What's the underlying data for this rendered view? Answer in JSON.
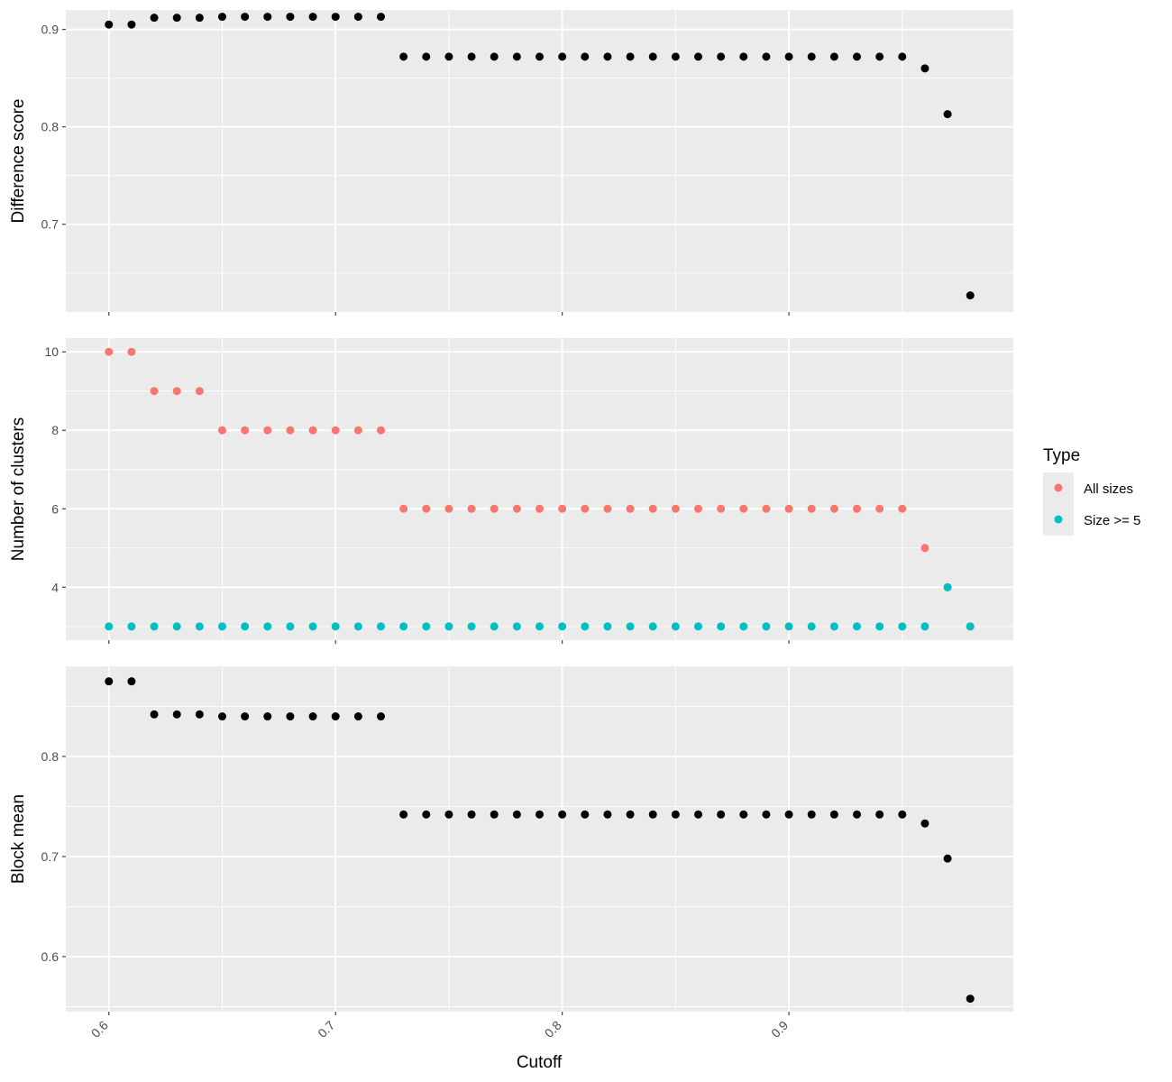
{
  "chart_data": {
    "type": "scatter",
    "x_axis": {
      "label": "Cutoff",
      "range": [
        0.581,
        0.999
      ],
      "ticks": [
        0.6,
        0.7,
        0.8,
        0.9
      ],
      "tick_labels": [
        "0.6",
        "0.7",
        "0.8",
        "0.9"
      ]
    },
    "x": [
      0.6,
      0.61,
      0.62,
      0.63,
      0.64,
      0.65,
      0.66,
      0.67,
      0.68,
      0.69,
      0.7,
      0.71,
      0.72,
      0.73,
      0.74,
      0.75,
      0.76,
      0.77,
      0.78,
      0.79,
      0.8,
      0.81,
      0.82,
      0.83,
      0.84,
      0.85,
      0.86,
      0.87,
      0.88,
      0.89,
      0.9,
      0.91,
      0.92,
      0.93,
      0.94,
      0.95,
      0.96,
      0.97,
      0.98
    ],
    "panels": [
      {
        "ylabel": "Difference score",
        "ylim": [
          0.61,
          0.92
        ],
        "y_ticks": [
          0.7,
          0.8,
          0.9
        ],
        "y_tick_labels": [
          "0.7",
          "0.8",
          "0.9"
        ],
        "series": [
          {
            "color": "#000000",
            "values": [
              0.905,
              0.905,
              0.912,
              0.912,
              0.912,
              0.913,
              0.913,
              0.913,
              0.913,
              0.913,
              0.913,
              0.913,
              0.913,
              0.872,
              0.872,
              0.872,
              0.872,
              0.872,
              0.872,
              0.872,
              0.872,
              0.872,
              0.872,
              0.872,
              0.872,
              0.872,
              0.872,
              0.872,
              0.872,
              0.872,
              0.872,
              0.872,
              0.872,
              0.872,
              0.872,
              0.872,
              0.86,
              0.813,
              0.627
            ]
          }
        ]
      },
      {
        "ylabel": "Number of clusters",
        "ylim": [
          2.65,
          10.35
        ],
        "y_ticks": [
          4,
          6,
          8,
          10
        ],
        "y_tick_labels": [
          "4",
          "6",
          "8",
          "10"
        ],
        "series": [
          {
            "name": "All sizes",
            "color": "#F8766D",
            "values": [
              10,
              10,
              9,
              9,
              9,
              8,
              8,
              8,
              8,
              8,
              8,
              8,
              8,
              6,
              6,
              6,
              6,
              6,
              6,
              6,
              6,
              6,
              6,
              6,
              6,
              6,
              6,
              6,
              6,
              6,
              6,
              6,
              6,
              6,
              6,
              6,
              5,
              4,
              3
            ]
          },
          {
            "name": "Size >= 5",
            "color": "#00BFC4",
            "values": [
              3,
              3,
              3,
              3,
              3,
              3,
              3,
              3,
              3,
              3,
              3,
              3,
              3,
              3,
              3,
              3,
              3,
              3,
              3,
              3,
              3,
              3,
              3,
              3,
              3,
              3,
              3,
              3,
              3,
              3,
              3,
              3,
              3,
              3,
              3,
              3,
              3,
              4,
              3
            ]
          }
        ]
      },
      {
        "ylabel": "Block mean",
        "ylim": [
          0.545,
          0.89
        ],
        "y_ticks": [
          0.6,
          0.7,
          0.8
        ],
        "y_tick_labels": [
          "0.6",
          "0.7",
          "0.8"
        ],
        "series": [
          {
            "color": "#000000",
            "values": [
              0.875,
              0.875,
              0.842,
              0.842,
              0.842,
              0.84,
              0.84,
              0.84,
              0.84,
              0.84,
              0.84,
              0.84,
              0.84,
              0.742,
              0.742,
              0.742,
              0.742,
              0.742,
              0.742,
              0.742,
              0.742,
              0.742,
              0.742,
              0.742,
              0.742,
              0.742,
              0.742,
              0.742,
              0.742,
              0.742,
              0.742,
              0.742,
              0.742,
              0.742,
              0.742,
              0.742,
              0.733,
              0.698,
              0.558
            ]
          }
        ]
      }
    ],
    "legend": {
      "title": "Type",
      "position": "right",
      "entries": [
        {
          "label": "All sizes",
          "color": "#F8766D"
        },
        {
          "label": "Size >= 5",
          "color": "#00BFC4"
        }
      ]
    },
    "grid": true,
    "panel_background": "#EBEBEB",
    "gridline_color": "#FFFFFF"
  }
}
